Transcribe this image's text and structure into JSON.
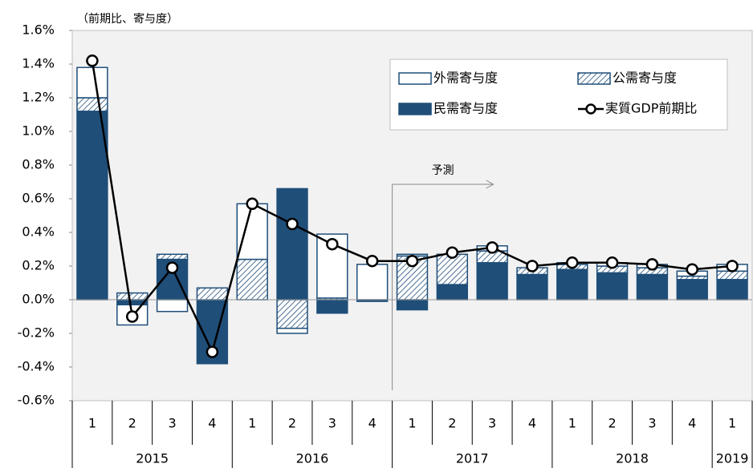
{
  "chart_data": {
    "type": "bar",
    "unit_label": "（前期比、寄与度）",
    "annotation": "予測",
    "categories": [
      "1",
      "2",
      "3",
      "4",
      "1",
      "2",
      "3",
      "4",
      "1",
      "2",
      "3",
      "4",
      "1",
      "2",
      "3",
      "4",
      "1"
    ],
    "x_groups": [
      "2015",
      "2016",
      "2017",
      "2018",
      "2019"
    ],
    "edgecolor": "#1f4e79",
    "series": [
      {
        "name": "外需寄与度",
        "color": "#ffffff",
        "values": [
          0.18,
          -0.12,
          -0.07,
          0.0,
          0.33,
          -0.03,
          0.38,
          0.21,
          0.01,
          0.0,
          0.03,
          0.0,
          0.01,
          0.02,
          0.02,
          0.03,
          0.04
        ]
      },
      {
        "name": "公需寄与度",
        "color": "#1f4e79",
        "hatch": "///",
        "values": [
          0.08,
          0.04,
          0.03,
          0.07,
          0.24,
          -0.17,
          0.01,
          0.0,
          0.26,
          0.18,
          0.07,
          0.04,
          0.03,
          0.04,
          0.04,
          0.02,
          0.05
        ]
      },
      {
        "name": "民需寄与度",
        "color": "#1f4e79",
        "values": [
          1.12,
          -0.03,
          0.24,
          -0.38,
          0.0,
          0.66,
          -0.08,
          -0.01,
          -0.06,
          0.09,
          0.22,
          0.15,
          0.18,
          0.16,
          0.15,
          0.12,
          0.12
        ]
      },
      {
        "name": "実質GDP前期比",
        "type": "line",
        "color": "#000000",
        "values": [
          1.42,
          -0.1,
          0.19,
          -0.31,
          0.57,
          0.45,
          0.33,
          0.23,
          0.23,
          0.28,
          0.31,
          0.2,
          0.22,
          0.22,
          0.21,
          0.18,
          0.2
        ]
      }
    ],
    "ylim": [
      -0.6,
      1.6
    ],
    "yticks": [
      {
        "value": -0.6,
        "label": "-0.6%"
      },
      {
        "value": -0.4,
        "label": "-0.4%"
      },
      {
        "value": -0.2,
        "label": "-0.2%"
      },
      {
        "value": 0,
        "label": "0.0%"
      },
      {
        "value": 0.2,
        "label": "0.2%"
      },
      {
        "value": 0.4,
        "label": "0.4%"
      },
      {
        "value": 0.6,
        "label": "0.6%"
      },
      {
        "value": 0.8,
        "label": "0.8%"
      },
      {
        "value": 1.0,
        "label": "1.0%"
      },
      {
        "value": 1.2,
        "label": "1.2%"
      },
      {
        "value": 1.4,
        "label": "1.4%"
      },
      {
        "value": 1.6,
        "label": "1.6%"
      }
    ],
    "legend": "upper right"
  }
}
